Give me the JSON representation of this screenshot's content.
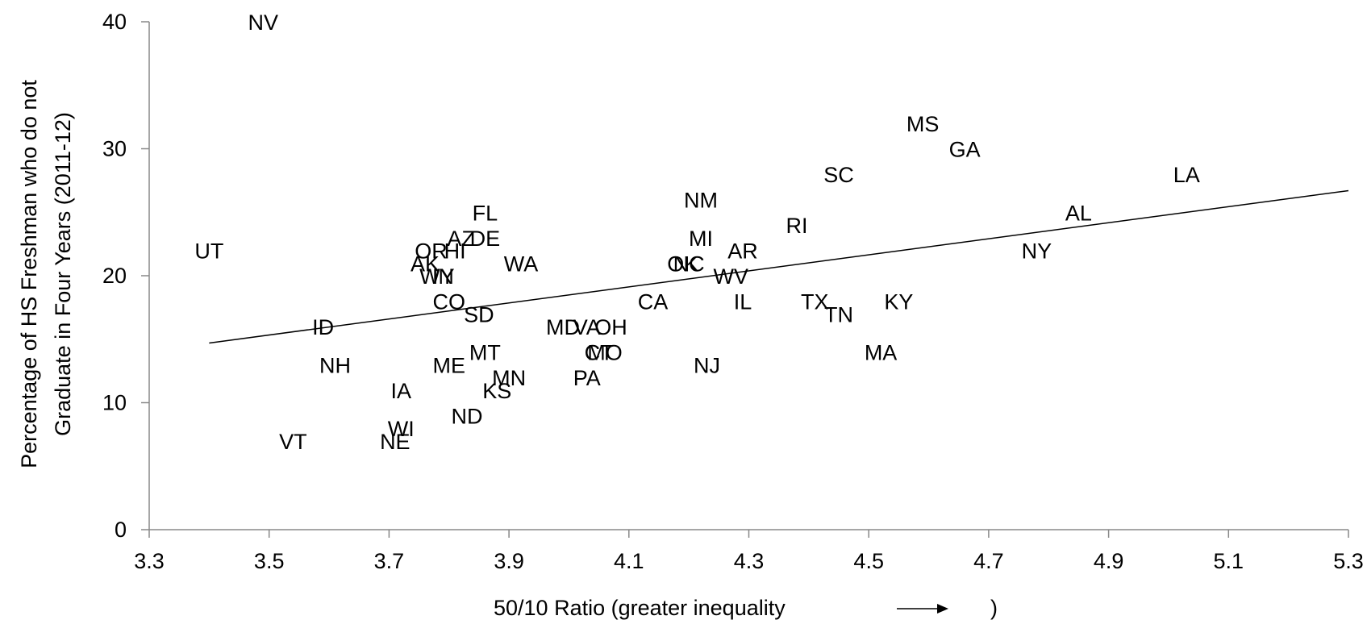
{
  "chart_data": {
    "type": "scatter",
    "xlabel": "50/10 Ratio (greater inequality",
    "xlabel_suffix": ")",
    "ylabel_lines": [
      "Percentage of HS Freshman who do not",
      "Graduate in Four Years (2011-12)"
    ],
    "xlim": [
      3.3,
      5.3
    ],
    "ylim": [
      0,
      40
    ],
    "x_ticks": [
      3.3,
      3.5,
      3.7,
      3.9,
      4.1,
      4.3,
      4.5,
      4.7,
      4.9,
      5.1,
      5.3
    ],
    "y_ticks": [
      0,
      10,
      20,
      30,
      40
    ],
    "grid": false,
    "trendline": {
      "x": [
        3.4,
        5.3
      ],
      "y": [
        14.7,
        26.7
      ]
    },
    "points": [
      {
        "label": "NV",
        "x": 3.49,
        "y": 40
      },
      {
        "label": "UT",
        "x": 3.4,
        "y": 22
      },
      {
        "label": "VT",
        "x": 3.54,
        "y": 7
      },
      {
        "label": "ID",
        "x": 3.59,
        "y": 16
      },
      {
        "label": "NH",
        "x": 3.61,
        "y": 13
      },
      {
        "label": "IA",
        "x": 3.72,
        "y": 11
      },
      {
        "label": "NE",
        "x": 3.71,
        "y": 7
      },
      {
        "label": "WI",
        "x": 3.72,
        "y": 8
      },
      {
        "label": "AK",
        "x": 3.76,
        "y": 21
      },
      {
        "label": "OR",
        "x": 3.77,
        "y": 22
      },
      {
        "label": "HI",
        "x": 3.81,
        "y": 22
      },
      {
        "label": "WY",
        "x": 3.78,
        "y": 20
      },
      {
        "label": "IN",
        "x": 3.79,
        "y": 20
      },
      {
        "label": "AZ",
        "x": 3.82,
        "y": 23
      },
      {
        "label": "DE",
        "x": 3.86,
        "y": 23
      },
      {
        "label": "FL",
        "x": 3.86,
        "y": 25
      },
      {
        "label": "CO",
        "x": 3.8,
        "y": 18
      },
      {
        "label": "SD",
        "x": 3.85,
        "y": 17
      },
      {
        "label": "ME",
        "x": 3.8,
        "y": 13
      },
      {
        "label": "MT",
        "x": 3.86,
        "y": 14
      },
      {
        "label": "MN",
        "x": 3.9,
        "y": 12
      },
      {
        "label": "KS",
        "x": 3.88,
        "y": 11
      },
      {
        "label": "ND",
        "x": 3.83,
        "y": 9
      },
      {
        "label": "WA",
        "x": 3.92,
        "y": 21
      },
      {
        "label": "MD",
        "x": 3.99,
        "y": 16
      },
      {
        "label": "VA",
        "x": 4.03,
        "y": 16
      },
      {
        "label": "OH",
        "x": 4.07,
        "y": 16
      },
      {
        "label": "MO",
        "x": 4.06,
        "y": 14
      },
      {
        "label": "CT",
        "x": 4.05,
        "y": 14
      },
      {
        "label": "PA",
        "x": 4.03,
        "y": 12
      },
      {
        "label": "CA",
        "x": 4.14,
        "y": 18
      },
      {
        "label": "NM",
        "x": 4.22,
        "y": 26
      },
      {
        "label": "MI",
        "x": 4.22,
        "y": 23
      },
      {
        "label": "OK",
        "x": 4.19,
        "y": 21
      },
      {
        "label": "NC",
        "x": 4.2,
        "y": 21
      },
      {
        "label": "AR",
        "x": 4.29,
        "y": 22
      },
      {
        "label": "WV",
        "x": 4.27,
        "y": 20
      },
      {
        "label": "IL",
        "x": 4.29,
        "y": 18
      },
      {
        "label": "NJ",
        "x": 4.23,
        "y": 13
      },
      {
        "label": "RI",
        "x": 4.38,
        "y": 24
      },
      {
        "label": "SC",
        "x": 4.45,
        "y": 28
      },
      {
        "label": "TX",
        "x": 4.41,
        "y": 18
      },
      {
        "label": "TN",
        "x": 4.45,
        "y": 17
      },
      {
        "label": "MS",
        "x": 4.59,
        "y": 32
      },
      {
        "label": "GA",
        "x": 4.66,
        "y": 30
      },
      {
        "label": "KY",
        "x": 4.55,
        "y": 18
      },
      {
        "label": "MA",
        "x": 4.52,
        "y": 14
      },
      {
        "label": "NY",
        "x": 4.78,
        "y": 22
      },
      {
        "label": "AL",
        "x": 4.85,
        "y": 25
      },
      {
        "label": "LA",
        "x": 5.03,
        "y": 28
      }
    ]
  }
}
